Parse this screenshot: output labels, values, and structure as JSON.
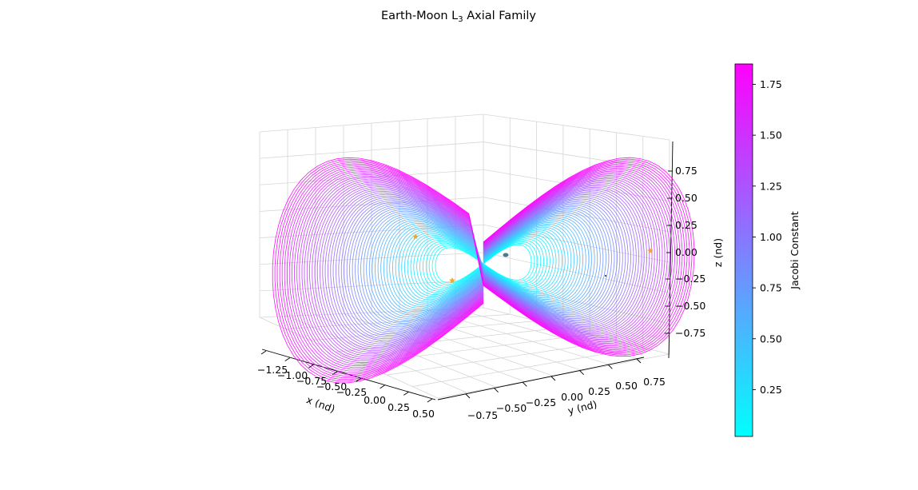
{
  "chart_data": {
    "type": "line3d",
    "title_main": "Earth-Moon L",
    "title_sub": "3",
    "title_rest": " Axial Family",
    "xlabel": "x (nd)",
    "ylabel": "y (nd)",
    "zlabel": "z (nd)",
    "x_ticks": [
      "−1.25",
      "−1.00",
      "−0.75",
      "−0.50",
      "−0.25",
      "0.00",
      "0.25",
      "0.50"
    ],
    "y_ticks": [
      "−0.75",
      "−0.50",
      "−0.25",
      "0.00",
      "0.25",
      "0.50",
      "0.75"
    ],
    "z_ticks": [
      "0.75",
      "0.50",
      "0.25",
      "0.00",
      "−0.25",
      "−0.50",
      "−0.75"
    ],
    "xlim": [
      -1.35,
      0.5
    ],
    "ylim": [
      -0.9,
      0.85
    ],
    "zlim": [
      -0.9,
      0.95
    ],
    "grid": true,
    "colorbar": {
      "label": "Jacobi Constant",
      "range": [
        0.02,
        1.85
      ],
      "ticks": [
        "1.75",
        "1.50",
        "1.25",
        "1.00",
        "0.75",
        "0.50",
        "0.25"
      ],
      "cmap_colors": [
        "#00ffff",
        "#ff00ff"
      ]
    },
    "family": {
      "name": "L3 Axial Family",
      "orbit_count": 60,
      "jacobi_min": 0.02,
      "jacobi_max": 1.85
    },
    "markers": [
      {
        "name": "L1",
        "color": "#f5a623",
        "symbol": "star"
      },
      {
        "name": "L2",
        "color": "#f5a623",
        "symbol": "star"
      },
      {
        "name": "L3",
        "color": "#f5a623",
        "symbol": "star"
      },
      {
        "name": "Earth",
        "color": "#4a7a8c",
        "symbol": "sphere"
      },
      {
        "name": "Moon",
        "color": "#444444",
        "symbol": "dot"
      }
    ]
  }
}
